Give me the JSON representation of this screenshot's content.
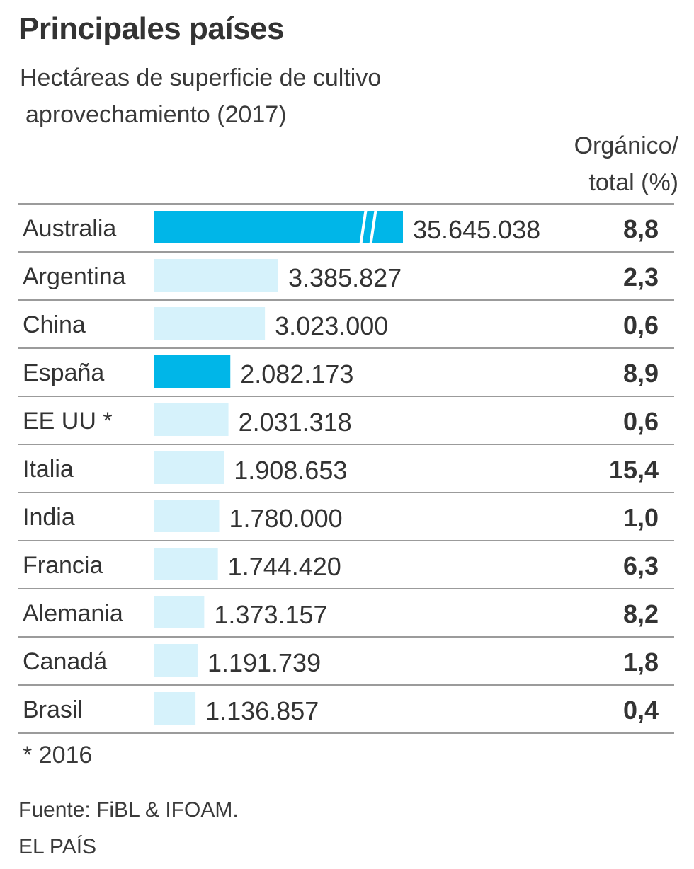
{
  "header": {
    "title": "Principales países",
    "subtitle_line1": "Hectáreas de superficie de cultivo",
    "subtitle_line2": "aprovechamiento (2017)",
    "column_head_line1": "Orgánico/",
    "column_head_line2": "total (%)"
  },
  "colors": {
    "highlight_bar": "#00b6e8",
    "normal_bar": "#d6f2fb",
    "rule": "#7a7a7a",
    "text": "#333333"
  },
  "chart_data": {
    "type": "bar",
    "orientation": "horizontal",
    "categories": [
      "Australia",
      "Argentina",
      "China",
      "España",
      "EE UU *",
      "Italia",
      "India",
      "Francia",
      "Alemania",
      "Canadá",
      "Brasil"
    ],
    "series": [
      {
        "values": [
          35645038,
          3385827,
          3023000,
          2082173,
          2031318,
          1908653,
          1780000,
          1744420,
          1373157,
          1191739,
          1136857
        ],
        "value_labels": [
          "35.645.038",
          "3.385.827",
          "3.023.000",
          "2.082.173",
          "2.031.318",
          "1.908.653",
          "1.780.000",
          "1.744.420",
          "1.373.157",
          "1.191.739",
          "1.136.857"
        ]
      }
    ],
    "highlighted": [
      "Australia",
      "España"
    ],
    "broken_axis": [
      "Australia"
    ],
    "organic_share_pct": [
      8.8,
      2.3,
      0.6,
      8.9,
      0.6,
      15.4,
      1.0,
      6.3,
      8.2,
      1.8,
      0.4
    ],
    "organic_share_labels": [
      "8,8",
      "2,3",
      "0,6",
      "8,9",
      "0,6",
      "15,4",
      "1,0",
      "6,3",
      "8,2",
      "1,8",
      "0,4"
    ]
  },
  "footer": {
    "footnote": "* 2016",
    "source": "Fuente: FiBL & IFOAM.",
    "brand": "EL PAÍS"
  }
}
